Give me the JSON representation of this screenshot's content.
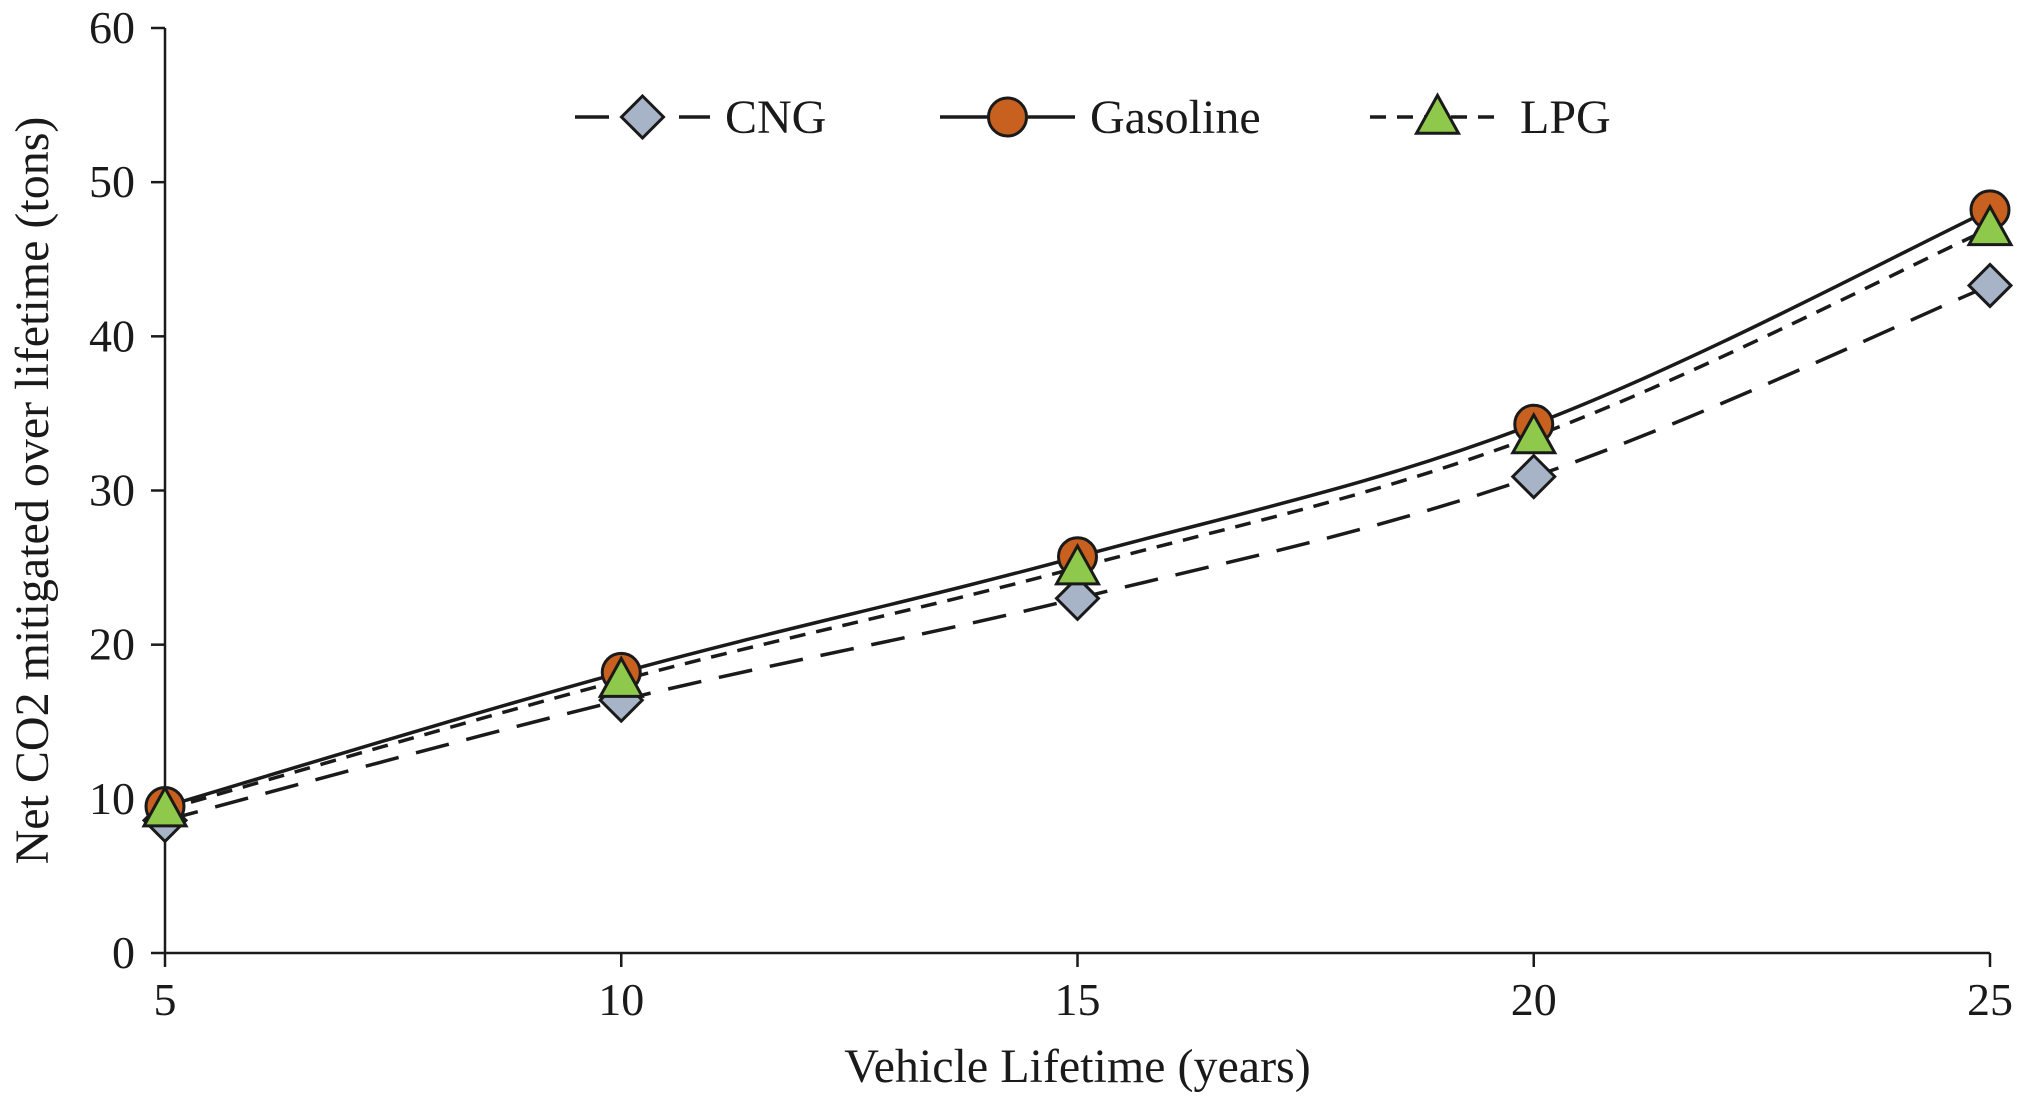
{
  "chart_data": {
    "type": "line",
    "title": "",
    "xlabel": "Vehicle Lifetime (years)",
    "ylabel": "Net CO2 mitigated over lifetime (tons)",
    "x": [
      5,
      10,
      15,
      20,
      25
    ],
    "xticks": [
      "5",
      "10",
      "15",
      "20",
      "25"
    ],
    "xlim": [
      5,
      25
    ],
    "ylim": [
      0,
      60
    ],
    "yticks": [
      "0",
      "10",
      "20",
      "30",
      "40",
      "50",
      "60"
    ],
    "grid": false,
    "legend_position": "top-center",
    "series": [
      {
        "name": "CNG",
        "values": [
          8.6,
          16.4,
          23.0,
          30.9,
          43.3
        ],
        "line_style": "long-dash",
        "marker": "diamond",
        "marker_color": "#a7b4c8",
        "line_color": "#1a1a1a"
      },
      {
        "name": "Gasoline",
        "values": [
          9.5,
          18.2,
          25.7,
          34.3,
          48.2
        ],
        "line_style": "solid",
        "marker": "circle",
        "marker_color": "#c8611f",
        "line_color": "#1a1a1a"
      },
      {
        "name": "LPG",
        "values": [
          9.3,
          17.7,
          25.0,
          33.5,
          47.0
        ],
        "line_style": "short-dash",
        "marker": "triangle",
        "marker_color": "#8fc94b",
        "line_color": "#1a1a1a"
      }
    ]
  }
}
